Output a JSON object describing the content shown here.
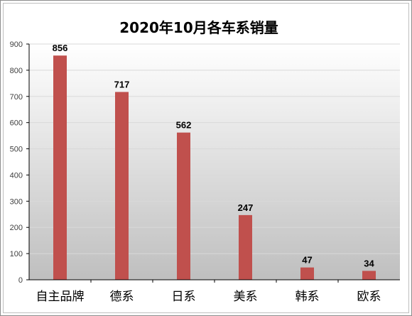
{
  "chart_data": {
    "type": "bar",
    "title": "2020年10月各车系销量",
    "xlabel": "",
    "ylabel": "",
    "categories": [
      "自主品牌",
      "德系",
      "日系",
      "美系",
      "韩系",
      "欧系"
    ],
    "values": [
      856,
      717,
      562,
      247,
      47,
      34
    ],
    "ylim": [
      0,
      900
    ],
    "yticks": [
      0,
      100,
      200,
      300,
      400,
      500,
      600,
      700,
      800,
      900
    ],
    "grid": true,
    "legend": "none",
    "colors": {
      "bar": "#c0504d",
      "plot_bg_top": "#ffffff",
      "plot_bg_bottom": "#bfbfbf",
      "grid": "#d9d9d9",
      "axis": "#000000"
    }
  }
}
